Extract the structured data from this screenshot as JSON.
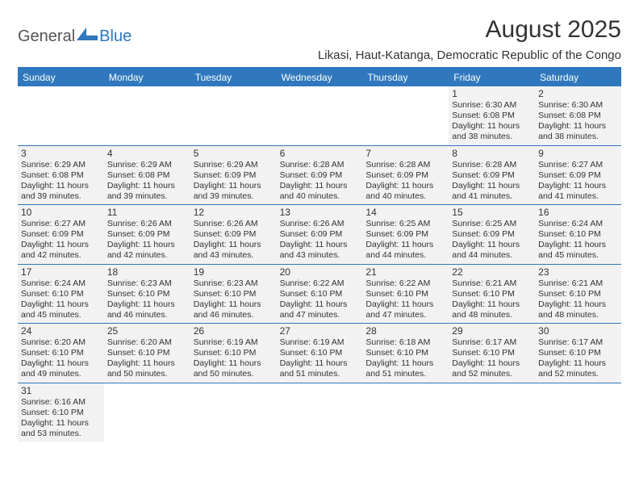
{
  "brand": {
    "part1": "General",
    "part2": "Blue"
  },
  "title": "August 2025",
  "location": "Likasi, Haut-Katanga, Democratic Republic of the Congo",
  "colors": {
    "accent": "#2f78bd",
    "cell_bg": "#f2f2f2",
    "page_bg": "#ffffff",
    "text": "#333333",
    "dow_text": "#ffffff"
  },
  "daysOfWeek": [
    "Sunday",
    "Monday",
    "Tuesday",
    "Wednesday",
    "Thursday",
    "Friday",
    "Saturday"
  ],
  "weeks": [
    [
      null,
      null,
      null,
      null,
      null,
      {
        "n": "1",
        "sr": "Sunrise: 6:30 AM",
        "ss": "Sunset: 6:08 PM",
        "d1": "Daylight: 11 hours",
        "d2": "and 38 minutes."
      },
      {
        "n": "2",
        "sr": "Sunrise: 6:30 AM",
        "ss": "Sunset: 6:08 PM",
        "d1": "Daylight: 11 hours",
        "d2": "and 38 minutes."
      }
    ],
    [
      {
        "n": "3",
        "sr": "Sunrise: 6:29 AM",
        "ss": "Sunset: 6:08 PM",
        "d1": "Daylight: 11 hours",
        "d2": "and 39 minutes."
      },
      {
        "n": "4",
        "sr": "Sunrise: 6:29 AM",
        "ss": "Sunset: 6:08 PM",
        "d1": "Daylight: 11 hours",
        "d2": "and 39 minutes."
      },
      {
        "n": "5",
        "sr": "Sunrise: 6:29 AM",
        "ss": "Sunset: 6:09 PM",
        "d1": "Daylight: 11 hours",
        "d2": "and 39 minutes."
      },
      {
        "n": "6",
        "sr": "Sunrise: 6:28 AM",
        "ss": "Sunset: 6:09 PM",
        "d1": "Daylight: 11 hours",
        "d2": "and 40 minutes."
      },
      {
        "n": "7",
        "sr": "Sunrise: 6:28 AM",
        "ss": "Sunset: 6:09 PM",
        "d1": "Daylight: 11 hours",
        "d2": "and 40 minutes."
      },
      {
        "n": "8",
        "sr": "Sunrise: 6:28 AM",
        "ss": "Sunset: 6:09 PM",
        "d1": "Daylight: 11 hours",
        "d2": "and 41 minutes."
      },
      {
        "n": "9",
        "sr": "Sunrise: 6:27 AM",
        "ss": "Sunset: 6:09 PM",
        "d1": "Daylight: 11 hours",
        "d2": "and 41 minutes."
      }
    ],
    [
      {
        "n": "10",
        "sr": "Sunrise: 6:27 AM",
        "ss": "Sunset: 6:09 PM",
        "d1": "Daylight: 11 hours",
        "d2": "and 42 minutes."
      },
      {
        "n": "11",
        "sr": "Sunrise: 6:26 AM",
        "ss": "Sunset: 6:09 PM",
        "d1": "Daylight: 11 hours",
        "d2": "and 42 minutes."
      },
      {
        "n": "12",
        "sr": "Sunrise: 6:26 AM",
        "ss": "Sunset: 6:09 PM",
        "d1": "Daylight: 11 hours",
        "d2": "and 43 minutes."
      },
      {
        "n": "13",
        "sr": "Sunrise: 6:26 AM",
        "ss": "Sunset: 6:09 PM",
        "d1": "Daylight: 11 hours",
        "d2": "and 43 minutes."
      },
      {
        "n": "14",
        "sr": "Sunrise: 6:25 AM",
        "ss": "Sunset: 6:09 PM",
        "d1": "Daylight: 11 hours",
        "d2": "and 44 minutes."
      },
      {
        "n": "15",
        "sr": "Sunrise: 6:25 AM",
        "ss": "Sunset: 6:09 PM",
        "d1": "Daylight: 11 hours",
        "d2": "and 44 minutes."
      },
      {
        "n": "16",
        "sr": "Sunrise: 6:24 AM",
        "ss": "Sunset: 6:10 PM",
        "d1": "Daylight: 11 hours",
        "d2": "and 45 minutes."
      }
    ],
    [
      {
        "n": "17",
        "sr": "Sunrise: 6:24 AM",
        "ss": "Sunset: 6:10 PM",
        "d1": "Daylight: 11 hours",
        "d2": "and 45 minutes."
      },
      {
        "n": "18",
        "sr": "Sunrise: 6:23 AM",
        "ss": "Sunset: 6:10 PM",
        "d1": "Daylight: 11 hours",
        "d2": "and 46 minutes."
      },
      {
        "n": "19",
        "sr": "Sunrise: 6:23 AM",
        "ss": "Sunset: 6:10 PM",
        "d1": "Daylight: 11 hours",
        "d2": "and 46 minutes."
      },
      {
        "n": "20",
        "sr": "Sunrise: 6:22 AM",
        "ss": "Sunset: 6:10 PM",
        "d1": "Daylight: 11 hours",
        "d2": "and 47 minutes."
      },
      {
        "n": "21",
        "sr": "Sunrise: 6:22 AM",
        "ss": "Sunset: 6:10 PM",
        "d1": "Daylight: 11 hours",
        "d2": "and 47 minutes."
      },
      {
        "n": "22",
        "sr": "Sunrise: 6:21 AM",
        "ss": "Sunset: 6:10 PM",
        "d1": "Daylight: 11 hours",
        "d2": "and 48 minutes."
      },
      {
        "n": "23",
        "sr": "Sunrise: 6:21 AM",
        "ss": "Sunset: 6:10 PM",
        "d1": "Daylight: 11 hours",
        "d2": "and 48 minutes."
      }
    ],
    [
      {
        "n": "24",
        "sr": "Sunrise: 6:20 AM",
        "ss": "Sunset: 6:10 PM",
        "d1": "Daylight: 11 hours",
        "d2": "and 49 minutes."
      },
      {
        "n": "25",
        "sr": "Sunrise: 6:20 AM",
        "ss": "Sunset: 6:10 PM",
        "d1": "Daylight: 11 hours",
        "d2": "and 50 minutes."
      },
      {
        "n": "26",
        "sr": "Sunrise: 6:19 AM",
        "ss": "Sunset: 6:10 PM",
        "d1": "Daylight: 11 hours",
        "d2": "and 50 minutes."
      },
      {
        "n": "27",
        "sr": "Sunrise: 6:19 AM",
        "ss": "Sunset: 6:10 PM",
        "d1": "Daylight: 11 hours",
        "d2": "and 51 minutes."
      },
      {
        "n": "28",
        "sr": "Sunrise: 6:18 AM",
        "ss": "Sunset: 6:10 PM",
        "d1": "Daylight: 11 hours",
        "d2": "and 51 minutes."
      },
      {
        "n": "29",
        "sr": "Sunrise: 6:17 AM",
        "ss": "Sunset: 6:10 PM",
        "d1": "Daylight: 11 hours",
        "d2": "and 52 minutes."
      },
      {
        "n": "30",
        "sr": "Sunrise: 6:17 AM",
        "ss": "Sunset: 6:10 PM",
        "d1": "Daylight: 11 hours",
        "d2": "and 52 minutes."
      }
    ],
    [
      {
        "n": "31",
        "sr": "Sunrise: 6:16 AM",
        "ss": "Sunset: 6:10 PM",
        "d1": "Daylight: 11 hours",
        "d2": "and 53 minutes."
      },
      null,
      null,
      null,
      null,
      null,
      null
    ]
  ]
}
